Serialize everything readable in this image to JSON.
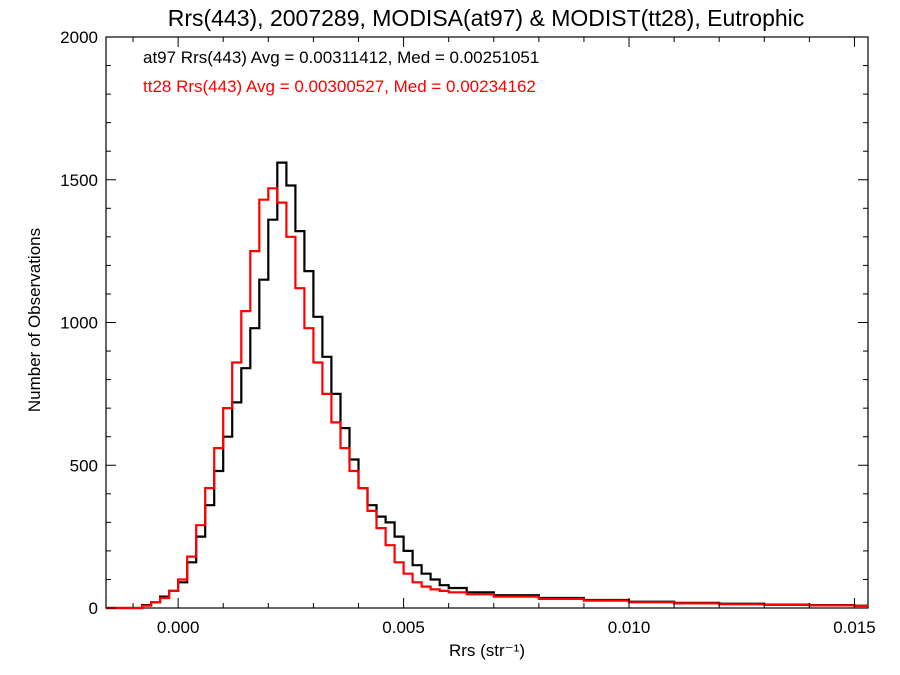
{
  "chart_data": {
    "type": "line",
    "step": true,
    "title": "Rrs(443), 2007289, MODISA(at97) & MODIST(tt28), Eutrophic",
    "xlabel": "Rrs (str⁻¹)",
    "ylabel": "Number of Observations",
    "xlim": [
      -0.0016,
      0.0153
    ],
    "ylim": [
      0,
      2000
    ],
    "xticks": [
      0.0,
      0.005,
      0.01,
      0.015
    ],
    "xtick_labels": [
      "0.000",
      "0.005",
      "0.010",
      "0.015"
    ],
    "yticks": [
      0,
      500,
      1000,
      1500,
      2000
    ],
    "ytick_labels": [
      "0",
      "500",
      "1000",
      "1500",
      "2000"
    ],
    "grid": false,
    "annotations": [
      {
        "text": "at97 Rrs(443) Avg = 0.00311412, Med = 0.00251051",
        "color": "#000000"
      },
      {
        "text": "tt28 Rrs(443) Avg = 0.00300527, Med = 0.00234162",
        "color": "#ff0000"
      }
    ],
    "series": [
      {
        "name": "at97",
        "color": "#000000",
        "points": [
          [
            -0.0016,
            0
          ],
          [
            -0.001,
            0
          ],
          [
            -0.0008,
            10
          ],
          [
            -0.0006,
            20
          ],
          [
            -0.0004,
            40
          ],
          [
            -0.0002,
            60
          ],
          [
            0.0,
            90
          ],
          [
            0.0002,
            160
          ],
          [
            0.0004,
            250
          ],
          [
            0.0006,
            360
          ],
          [
            0.0008,
            480
          ],
          [
            0.001,
            600
          ],
          [
            0.0012,
            720
          ],
          [
            0.0014,
            840
          ],
          [
            0.0016,
            980
          ],
          [
            0.0018,
            1150
          ],
          [
            0.002,
            1360
          ],
          [
            0.0022,
            1560
          ],
          [
            0.0024,
            1480
          ],
          [
            0.0026,
            1320
          ],
          [
            0.0028,
            1180
          ],
          [
            0.003,
            1020
          ],
          [
            0.0032,
            880
          ],
          [
            0.0034,
            750
          ],
          [
            0.0036,
            630
          ],
          [
            0.0038,
            520
          ],
          [
            0.004,
            420
          ],
          [
            0.0042,
            360
          ],
          [
            0.0044,
            320
          ],
          [
            0.0046,
            300
          ],
          [
            0.0048,
            250
          ],
          [
            0.005,
            200
          ],
          [
            0.0052,
            150
          ],
          [
            0.0054,
            120
          ],
          [
            0.0056,
            100
          ],
          [
            0.0058,
            80
          ],
          [
            0.006,
            70
          ],
          [
            0.0064,
            55
          ],
          [
            0.007,
            45
          ],
          [
            0.008,
            35
          ],
          [
            0.009,
            28
          ],
          [
            0.01,
            22
          ],
          [
            0.011,
            18
          ],
          [
            0.012,
            15
          ],
          [
            0.013,
            12
          ],
          [
            0.014,
            10
          ],
          [
            0.015,
            8
          ],
          [
            0.0153,
            8
          ]
        ]
      },
      {
        "name": "tt28",
        "color": "#ff0000",
        "points": [
          [
            -0.0016,
            0
          ],
          [
            -0.001,
            0
          ],
          [
            -0.0008,
            8
          ],
          [
            -0.0006,
            20
          ],
          [
            -0.0004,
            35
          ],
          [
            -0.0002,
            60
          ],
          [
            0.0,
            100
          ],
          [
            0.0002,
            180
          ],
          [
            0.0004,
            290
          ],
          [
            0.0006,
            420
          ],
          [
            0.0008,
            560
          ],
          [
            0.001,
            700
          ],
          [
            0.0012,
            860
          ],
          [
            0.0014,
            1040
          ],
          [
            0.0016,
            1250
          ],
          [
            0.0018,
            1430
          ],
          [
            0.002,
            1470
          ],
          [
            0.0022,
            1420
          ],
          [
            0.0024,
            1300
          ],
          [
            0.0026,
            1120
          ],
          [
            0.0028,
            980
          ],
          [
            0.003,
            860
          ],
          [
            0.0032,
            750
          ],
          [
            0.0034,
            650
          ],
          [
            0.0036,
            560
          ],
          [
            0.0038,
            480
          ],
          [
            0.004,
            420
          ],
          [
            0.0042,
            340
          ],
          [
            0.0044,
            280
          ],
          [
            0.0046,
            220
          ],
          [
            0.0048,
            160
          ],
          [
            0.005,
            120
          ],
          [
            0.0052,
            90
          ],
          [
            0.0054,
            75
          ],
          [
            0.0056,
            65
          ],
          [
            0.0058,
            60
          ],
          [
            0.006,
            55
          ],
          [
            0.0064,
            48
          ],
          [
            0.007,
            40
          ],
          [
            0.008,
            32
          ],
          [
            0.009,
            26
          ],
          [
            0.01,
            20
          ],
          [
            0.011,
            16
          ],
          [
            0.012,
            13
          ],
          [
            0.013,
            11
          ],
          [
            0.014,
            9
          ],
          [
            0.015,
            7
          ],
          [
            0.0153,
            7
          ]
        ]
      }
    ]
  }
}
